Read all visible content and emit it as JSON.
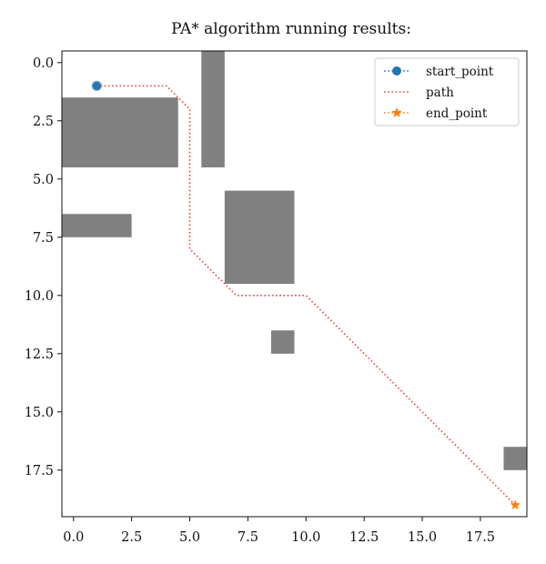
{
  "chart_data": {
    "type": "line",
    "title": "PA* algorithm running results:",
    "xlabel": "",
    "ylabel": "",
    "xlim": [
      -0.5,
      19.5
    ],
    "ylim": [
      19.5,
      -0.5
    ],
    "y_inverted": true,
    "grid": false,
    "legend_position": "top-right",
    "x_ticks": [
      "0.0",
      "2.5",
      "5.0",
      "7.5",
      "10.0",
      "12.5",
      "15.0",
      "17.5"
    ],
    "y_ticks": [
      "0.0",
      "2.5",
      "5.0",
      "7.5",
      "10.0",
      "12.5",
      "15.0",
      "17.5"
    ],
    "obstacles": [
      {
        "x0": -0.5,
        "x1": 4.5,
        "y0": 1.5,
        "y1": 4.5
      },
      {
        "x0": 5.5,
        "x1": 6.5,
        "y0": -0.5,
        "y1": 4.5
      },
      {
        "x0": -0.5,
        "x1": 2.5,
        "y0": 6.5,
        "y1": 7.5
      },
      {
        "x0": 6.5,
        "x1": 9.5,
        "y0": 5.5,
        "y1": 9.5
      },
      {
        "x0": 8.5,
        "x1": 9.5,
        "y0": 11.5,
        "y1": 12.5
      },
      {
        "x0": 18.5,
        "x1": 19.5,
        "y0": 16.5,
        "y1": 17.5
      }
    ],
    "obstacle_color": "#808080",
    "series": [
      {
        "name": "start_point",
        "marker": "circle",
        "linestyle": "dotted",
        "color": "#1f77b4",
        "points": [
          [
            1,
            1
          ]
        ]
      },
      {
        "name": "path",
        "marker": "none",
        "linestyle": "dotted",
        "color": "#e8453c",
        "points": [
          [
            1,
            1
          ],
          [
            4,
            1
          ],
          [
            5,
            2
          ],
          [
            5,
            8
          ],
          [
            7,
            10
          ],
          [
            10,
            10
          ],
          [
            19,
            19
          ]
        ]
      },
      {
        "name": "end_point",
        "marker": "star",
        "linestyle": "dotted",
        "color": "#ff7f0e",
        "points": [
          [
            19,
            19
          ]
        ]
      }
    ]
  }
}
